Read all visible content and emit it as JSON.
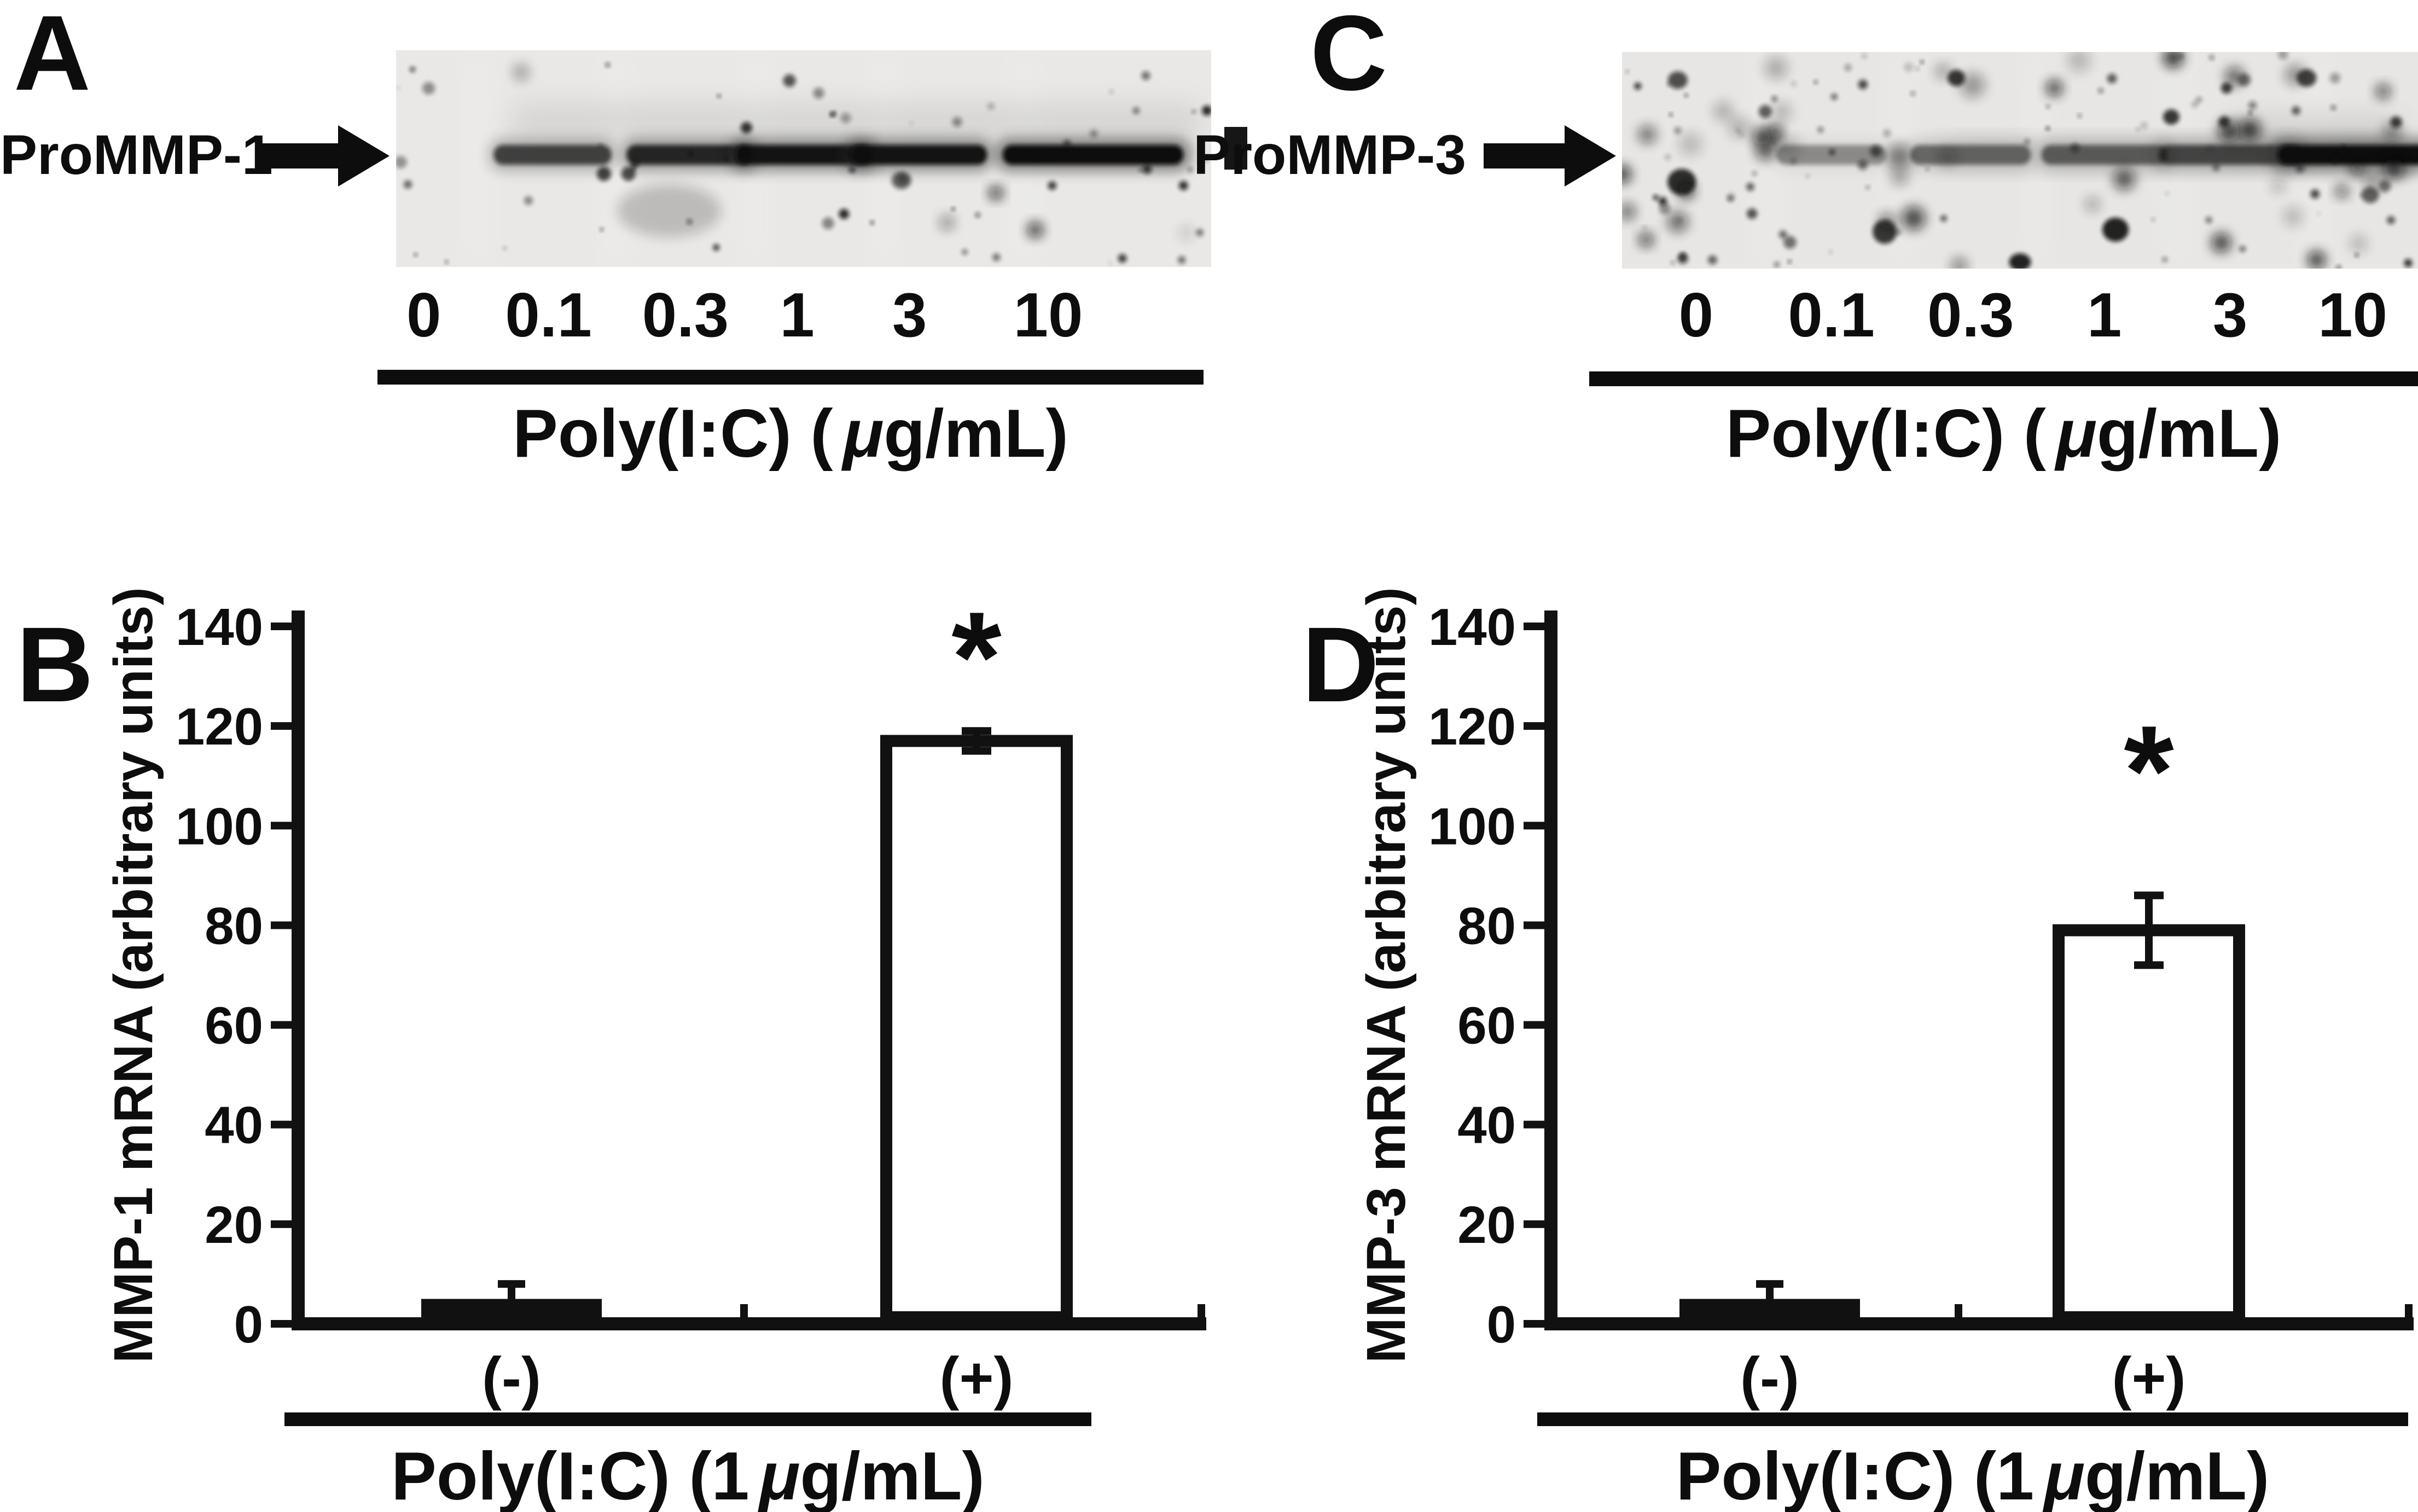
{
  "figure": {
    "background": "#ffffff",
    "ink": "#111111"
  },
  "blot_a": {
    "letter": "A",
    "protein_label": "ProMMP-1",
    "arrow_icon": "right-arrow",
    "lane_labels": [
      "0",
      "0.1",
      "0.3",
      "1",
      "3",
      "10"
    ],
    "axis_title": "Poly(I:C) (μg/mL)",
    "axis_title_prefix": "Poly(I:C) (",
    "axis_title_mu": "μ",
    "axis_title_suffix": "g/mL)",
    "bands": [
      {
        "lane": "0",
        "intensity": 0
      },
      {
        "lane": "0.1",
        "intensity": 0.55
      },
      {
        "lane": "0.3",
        "intensity": 0.75
      },
      {
        "lane": "1",
        "intensity": 0.9
      },
      {
        "lane": "3",
        "intensity": 0.9
      },
      {
        "lane": "10",
        "intensity": 1.0
      }
    ]
  },
  "blot_c": {
    "letter": "C",
    "protein_label": "ProMMP-3",
    "arrow_icon": "right-arrow",
    "lane_labels": [
      "0",
      "0.1",
      "0.3",
      "1",
      "3",
      "10"
    ],
    "axis_title": "Poly(I:C) (μg/mL)",
    "axis_title_prefix": "Poly(I:C) (",
    "axis_title_mu": "μ",
    "axis_title_suffix": "g/mL)",
    "bands": [
      {
        "lane": "0",
        "intensity": 0
      },
      {
        "lane": "0.1",
        "intensity": 0.12
      },
      {
        "lane": "0.3",
        "intensity": 0.3
      },
      {
        "lane": "1",
        "intensity": 0.35
      },
      {
        "lane": "3",
        "intensity": 0.5
      },
      {
        "lane": "10",
        "intensity": 1.0
      }
    ]
  },
  "chart_data": [
    {
      "id": "B",
      "panel_letter": "B",
      "type": "bar",
      "categories": [
        "(-)",
        "(+)"
      ],
      "values": [
        5,
        117
      ],
      "errors": [
        3,
        2
      ],
      "bar_styles": [
        "solid-black",
        "open-white"
      ],
      "ylabel": "MMP-1 mRNA (arbitrary units)",
      "yticks": [
        0,
        20,
        40,
        60,
        80,
        100,
        120,
        140
      ],
      "ylim": [
        0,
        140
      ],
      "grid": false,
      "legend": "none",
      "significance_marker": "*",
      "significance_category": "(+)",
      "xlabel": "Poly(I:C) (1 μg/mL)",
      "xlabel_prefix": "Poly(I:C) (1",
      "xlabel_mu": "μ",
      "xlabel_suffix": "g/mL)"
    },
    {
      "id": "D",
      "panel_letter": "D",
      "type": "bar",
      "categories": [
        "(-)",
        "(+)"
      ],
      "values": [
        5,
        79
      ],
      "errors": [
        3,
        7
      ],
      "bar_styles": [
        "solid-black",
        "open-white"
      ],
      "ylabel": "MMP-3 mRNA (arbitrary units)",
      "yticks": [
        0,
        20,
        40,
        60,
        80,
        100,
        120,
        140
      ],
      "ylim": [
        0,
        140
      ],
      "grid": false,
      "legend": "none",
      "significance_marker": "*",
      "significance_category": "(+)",
      "xlabel": "Poly(I:C) (1 μg/mL)",
      "xlabel_prefix": "Poly(I:C) (1",
      "xlabel_mu": "μ",
      "xlabel_suffix": "g/mL)"
    }
  ]
}
